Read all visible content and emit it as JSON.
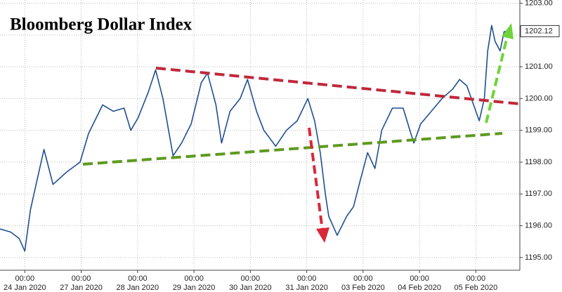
{
  "chart_data": {
    "type": "line",
    "title": "Bloomberg Dollar Index",
    "xlim": [
      -0.44,
      8.78
    ],
    "ylim": [
      1194.6,
      1203.1
    ],
    "xticks": [
      {
        "value": 0,
        "label": "24 Jan 2020",
        "time": "00:00"
      },
      {
        "value": 1,
        "label": "27 Jan 2020",
        "time": "00:00"
      },
      {
        "value": 2,
        "label": "28 Jan 2020",
        "time": "00:00"
      },
      {
        "value": 3,
        "label": "29 Jan 2020",
        "time": "00:00"
      },
      {
        "value": 4,
        "label": "30 Jan 2020",
        "time": "00:00"
      },
      {
        "value": 5,
        "label": "31 Jan 2020",
        "time": "00:00"
      },
      {
        "value": 6,
        "label": "03 Feb 2020",
        "time": "00:00"
      },
      {
        "value": 7,
        "label": "04 Feb 2020",
        "time": "00:00"
      },
      {
        "value": 8,
        "label": "05 Feb 2020",
        "time": "00:00"
      }
    ],
    "yticks": [
      {
        "value": 1195,
        "label": "1195.00"
      },
      {
        "value": 1196,
        "label": "1196.00"
      },
      {
        "value": 1197,
        "label": "1197.00"
      },
      {
        "value": 1198,
        "label": "1198.00"
      },
      {
        "value": 1199,
        "label": "1199.00"
      },
      {
        "value": 1200,
        "label": "1200.00"
      },
      {
        "value": 1201,
        "label": "1201.00"
      },
      {
        "value": 1202,
        "label": "1202.00"
      },
      {
        "value": 1203,
        "label": "1203.00"
      }
    ],
    "grid": true,
    "color": "#1f4f8f",
    "x": [
      -0.44,
      -0.25,
      -0.1,
      0,
      0.1,
      0.2,
      0.34,
      0.5,
      0.75,
      0.98,
      1.13,
      1.38,
      1.57,
      1.76,
      1.88,
      2.01,
      2.19,
      2.32,
      2.45,
      2.55,
      2.63,
      2.78,
      2.95,
      3.13,
      3.24,
      3.39,
      3.49,
      3.64,
      3.82,
      3.95,
      4.11,
      4.24,
      4.45,
      4.64,
      4.83,
      5.02,
      5.14,
      5.24,
      5.33,
      5.39,
      5.54,
      5.71,
      5.83,
      5.96,
      6.08,
      6.21,
      6.33,
      6.52,
      6.71,
      6.83,
      6.9,
      7.02,
      7.21,
      7.4,
      7.59,
      7.71,
      7.84,
      7.96,
      8.06,
      8.15,
      8.21,
      8.28,
      8.34,
      8.43,
      8.5,
      8.54
    ],
    "values": [
      1195.9,
      1195.8,
      1195.6,
      1195.2,
      1196.5,
      1197.3,
      1198.4,
      1197.3,
      1197.7,
      1198.0,
      1198.9,
      1199.8,
      1199.6,
      1199.7,
      1199.0,
      1199.4,
      1200.2,
      1200.9,
      1200.0,
      1199.0,
      1198.2,
      1198.6,
      1199.2,
      1200.5,
      1200.8,
      1199.8,
      1198.6,
      1199.6,
      1200.0,
      1200.6,
      1199.6,
      1199.0,
      1198.5,
      1199.0,
      1199.3,
      1200.0,
      1199.3,
      1198.3,
      1197.0,
      1196.3,
      1195.7,
      1196.3,
      1196.6,
      1197.5,
      1198.3,
      1197.8,
      1199.0,
      1199.7,
      1199.7,
      1199.0,
      1198.6,
      1199.2,
      1199.6,
      1200.0,
      1200.3,
      1200.6,
      1200.4,
      1199.8,
      1199.3,
      1200.0,
      1201.5,
      1202.3,
      1201.8,
      1201.5,
      1202.1,
      1202.12
    ],
    "last_label": {
      "value": 1202.12,
      "label": "1202.12"
    }
  }
}
